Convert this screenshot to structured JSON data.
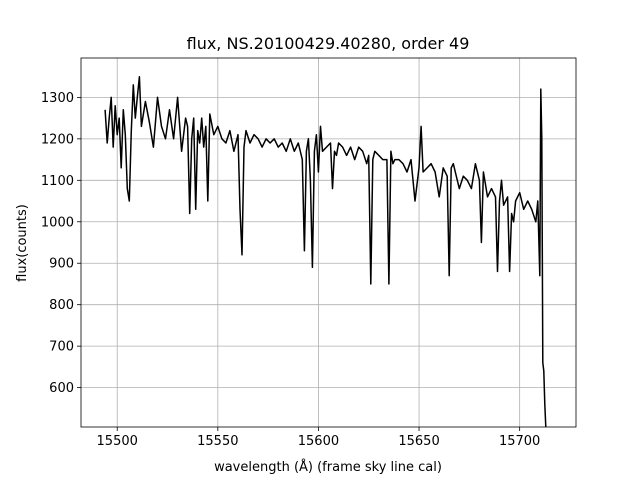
{
  "chart_data": {
    "type": "line",
    "title": "flux, NS.20100429.40280, order 49",
    "xlabel": "wavelength (Å) (frame sky line cal)",
    "ylabel": "flux(counts)",
    "xlim": [
      15482,
      15728
    ],
    "ylim": [
      505,
      1395
    ],
    "xticks": [
      15500,
      15550,
      15600,
      15650,
      15700
    ],
    "yticks": [
      600,
      700,
      800,
      900,
      1000,
      1100,
      1200,
      1300
    ],
    "grid": true,
    "legend": "none",
    "series_color": "#000000",
    "series": [
      {
        "x": [
          15494,
          15495,
          15496,
          15497,
          15498,
          15499,
          15500,
          15501,
          15502,
          15503,
          15504,
          15505,
          15506,
          15507,
          15508,
          15509,
          15510,
          15511,
          15512,
          15514,
          15516,
          15518,
          15520,
          15522,
          15524,
          15526,
          15528,
          15530,
          15532,
          15534,
          15535,
          15536,
          15537,
          15538,
          15539,
          15540,
          15541,
          15542,
          15543,
          15544,
          15545,
          15546,
          15548,
          15550,
          15552,
          15554,
          15556,
          15558,
          15560,
          15561,
          15562,
          15563,
          15564,
          15566,
          15568,
          15570,
          15572,
          15574,
          15576,
          15578,
          15580,
          15582,
          15584,
          15586,
          15588,
          15590,
          15592,
          15593,
          15594,
          15595,
          15596,
          15597,
          15598,
          15599,
          15600,
          15601,
          15602,
          15604,
          15606,
          15607,
          15608,
          15609,
          15610,
          15612,
          15614,
          15616,
          15618,
          15620,
          15622,
          15624,
          15625,
          15626,
          15627,
          15628,
          15630,
          15632,
          15634,
          15635,
          15636,
          15637,
          15638,
          15640,
          15642,
          15644,
          15646,
          15648,
          15650,
          15651,
          15652,
          15654,
          15656,
          15658,
          15660,
          15662,
          15664,
          15665,
          15666,
          15667,
          15668,
          15670,
          15672,
          15674,
          15676,
          15678,
          15680,
          15681,
          15682,
          15683,
          15684,
          15686,
          15688,
          15689,
          15690,
          15691,
          15692,
          15694,
          15695,
          15696,
          15697,
          15698,
          15700,
          15702,
          15704,
          15706,
          15708,
          15709,
          15710,
          15710.5,
          15711,
          15711.5,
          15712,
          15712.5,
          15713
        ],
        "y": [
          1270,
          1190,
          1250,
          1300,
          1180,
          1280,
          1210,
          1250,
          1130,
          1270,
          1210,
          1080,
          1050,
          1220,
          1330,
          1250,
          1300,
          1350,
          1230,
          1290,
          1240,
          1180,
          1300,
          1230,
          1200,
          1270,
          1200,
          1300,
          1170,
          1250,
          1230,
          1020,
          1200,
          1250,
          1030,
          1220,
          1190,
          1250,
          1180,
          1230,
          1050,
          1260,
          1210,
          1230,
          1200,
          1190,
          1220,
          1170,
          1210,
          1030,
          920,
          1180,
          1220,
          1190,
          1210,
          1200,
          1180,
          1200,
          1190,
          1200,
          1180,
          1190,
          1170,
          1200,
          1170,
          1190,
          1150,
          930,
          1170,
          1200,
          1100,
          890,
          1170,
          1210,
          1120,
          1230,
          1170,
          1180,
          1190,
          1080,
          1170,
          1160,
          1190,
          1180,
          1160,
          1180,
          1150,
          1180,
          1170,
          1140,
          1160,
          850,
          1150,
          1170,
          1160,
          1150,
          1150,
          850,
          1170,
          1140,
          1150,
          1150,
          1140,
          1120,
          1150,
          1050,
          1130,
          1230,
          1120,
          1130,
          1140,
          1120,
          1060,
          1130,
          1110,
          870,
          1130,
          1140,
          1120,
          1080,
          1110,
          1100,
          1080,
          1140,
          1100,
          950,
          1120,
          1090,
          1060,
          1080,
          1060,
          880,
          1050,
          1100,
          1040,
          1060,
          880,
          1020,
          1000,
          1050,
          1070,
          1030,
          1050,
          1030,
          1000,
          1050,
          870,
          1320,
          1200,
          660,
          640,
          560,
          505
        ]
      }
    ]
  }
}
